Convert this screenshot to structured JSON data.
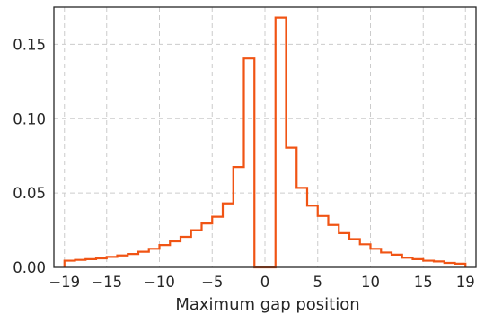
{
  "chart_data": {
    "type": "histogram-step",
    "title": "",
    "xlabel": "Maximum gap position",
    "ylabel": "",
    "xlim": [
      -20.0,
      20.0
    ],
    "ylim": [
      0.0,
      0.175
    ],
    "x_ticks": [
      -19,
      -15,
      -10,
      -5,
      0,
      5,
      10,
      15,
      19
    ],
    "x_tick_labels": [
      "−19",
      "−15",
      "−10",
      "−5",
      "0",
      "5",
      "10",
      "15",
      "19"
    ],
    "y_ticks": [
      0.0,
      0.05,
      0.1,
      0.15
    ],
    "y_tick_labels": [
      "0.00",
      "0.05",
      "0.10",
      "0.15"
    ],
    "grid": true,
    "line_color": "#f05414",
    "bin_edges": [
      -19,
      -18,
      -17,
      -16,
      -15,
      -14,
      -13,
      -12,
      -11,
      -10,
      -9,
      -8,
      -7,
      -6,
      -5,
      -4,
      -3,
      -2,
      -1,
      0,
      1,
      2,
      3,
      4,
      5,
      6,
      7,
      8,
      9,
      10,
      11,
      12,
      13,
      14,
      15,
      16,
      17,
      18,
      19
    ],
    "values": [
      0.0045,
      0.005,
      0.0055,
      0.006,
      0.007,
      0.008,
      0.009,
      0.0105,
      0.0125,
      0.015,
      0.0175,
      0.0205,
      0.025,
      0.0295,
      0.034,
      0.043,
      0.0675,
      0.1405,
      0.0,
      0.0,
      0.168,
      0.0805,
      0.0535,
      0.0415,
      0.0345,
      0.0285,
      0.023,
      0.019,
      0.0155,
      0.0125,
      0.01,
      0.0085,
      0.0065,
      0.0055,
      0.0045,
      0.004,
      0.003,
      0.0025
    ]
  }
}
